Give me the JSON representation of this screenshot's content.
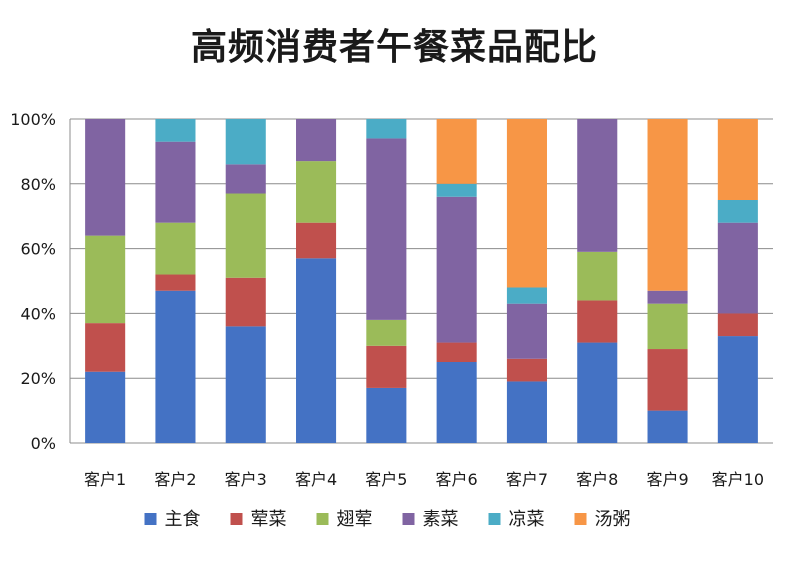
{
  "chart_data": {
    "type": "bar",
    "stacked": true,
    "normalized": true,
    "title": "高频消费者午餐菜品配比",
    "xlabel": "",
    "ylabel": "",
    "ylim": [
      0,
      100
    ],
    "yticks": [
      "0%",
      "20%",
      "40%",
      "60%",
      "80%",
      "100%"
    ],
    "grid": true,
    "legend_position": "bottom",
    "categories": [
      "客户1",
      "客户2",
      "客户3",
      "客户4",
      "客户5",
      "客户6",
      "客户7",
      "客户8",
      "客户9",
      "客户10"
    ],
    "series": [
      {
        "name": "主食",
        "color": "#4472C4",
        "values": [
          22,
          47,
          36,
          57,
          17,
          25,
          19,
          31,
          10,
          33
        ]
      },
      {
        "name": "荤菜",
        "color": "#C0504D",
        "values": [
          15,
          5,
          15,
          11,
          13,
          6,
          7,
          13,
          19,
          7
        ]
      },
      {
        "name": "翅荤",
        "color": "#9BBB59",
        "values": [
          27,
          16,
          26,
          19,
          8,
          0,
          0,
          15,
          14,
          0
        ]
      },
      {
        "name": "素菜",
        "color": "#8064A2",
        "values": [
          36,
          25,
          9,
          13,
          56,
          45,
          17,
          41,
          4,
          28
        ]
      },
      {
        "name": "凉菜",
        "color": "#4BACC6",
        "values": [
          0,
          7,
          14,
          0,
          6,
          4,
          5,
          0,
          0,
          7
        ]
      },
      {
        "name": "汤粥",
        "color": "#F79646",
        "values": [
          0,
          0,
          0,
          0,
          0,
          20,
          52,
          0,
          53,
          25
        ]
      }
    ]
  }
}
